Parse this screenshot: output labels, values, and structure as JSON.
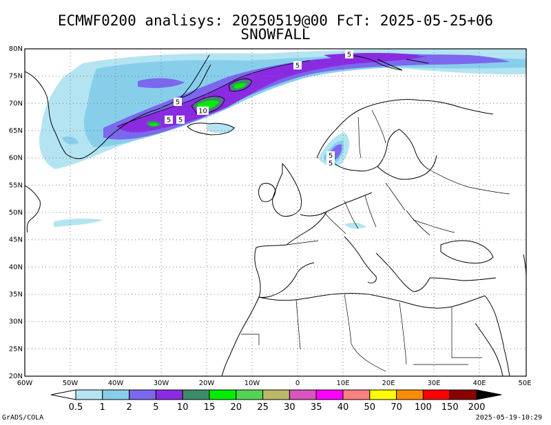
{
  "title": {
    "line1": "ECMWF0200 analisys: 20250519@00 FcT: 2025-05-25+06",
    "line2": "SNOWFALL"
  },
  "map": {
    "projection": "lat-lon",
    "lon_range": [
      -60,
      50
    ],
    "lat_range": [
      20,
      80
    ],
    "lat_ticks": [
      "20N",
      "25N",
      "30N",
      "35N",
      "40N",
      "45N",
      "50N",
      "55N",
      "60N",
      "65N",
      "70N",
      "75N",
      "80N"
    ],
    "lon_ticks": [
      "60W",
      "50W",
      "40W",
      "30W",
      "20W",
      "10W",
      "0",
      "10E",
      "20E",
      "30E",
      "40E",
      "50E"
    ],
    "grid": "dotted",
    "contour_labels": [
      "5",
      "5",
      "5",
      "10",
      "5",
      "5",
      "5",
      "5"
    ]
  },
  "colorbar": {
    "labels": [
      "0.5",
      "1",
      "2",
      "5",
      "10",
      "15",
      "20",
      "25",
      "30",
      "35",
      "40",
      "50",
      "70",
      "100",
      "150",
      "200"
    ],
    "colors": [
      "#ffffff",
      "#b4e4f2",
      "#87ceeb",
      "#7b68ee",
      "#8a2be2",
      "#3c8c6c",
      "#00ee00",
      "#54d454",
      "#bdb76b",
      "#da55be",
      "#ff00ff",
      "#ff8080",
      "#ffff00",
      "#ff8c00",
      "#ff0000",
      "#8b0000",
      "#000000"
    ]
  },
  "footer": {
    "left": "GrADS/COLA",
    "right": "2025-05-19-10:29"
  }
}
